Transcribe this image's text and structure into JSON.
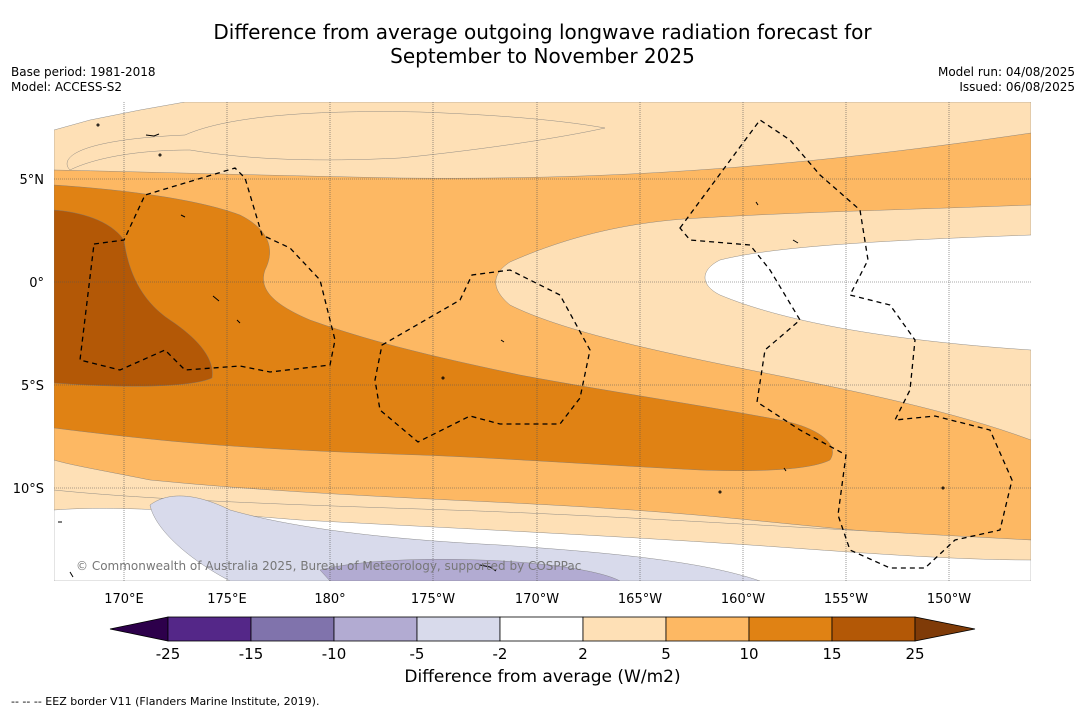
{
  "title_line1": "Difference from average outgoing longwave radiation forecast for",
  "title_line2": "September to November 2025",
  "base_period": "Base period: 1981-2018",
  "model": "Model: ACCESS-S2",
  "model_run": "Model run: 04/08/2025",
  "issued": "Issued: 06/08/2025",
  "copyright": "© Commonwealth of Australia 2025, Bureau of Meteorology, supported by COSPPac",
  "footnote": "--  --  -- EEZ border V11 (Flanders Marine Institute, 2019).",
  "colorbar_label": "Difference from average (W/m2)",
  "lon_labels": [
    "170°E",
    "175°E",
    "180°",
    "175°W",
    "170°W",
    "165°W",
    "160°W",
    "155°W",
    "150°W"
  ],
  "lat_labels": [
    "5°N",
    "0°",
    "5°S",
    "10°S"
  ],
  "colorbar": {
    "ticks": [
      "-25",
      "-15",
      "-10",
      "-5",
      "-2",
      "2",
      "5",
      "10",
      "15",
      "25"
    ],
    "colors": [
      "#2d004b",
      "#542788",
      "#8073ac",
      "#b2abd2",
      "#d8daeb",
      "#ffffff",
      "#fee0b6",
      "#fdb863",
      "#e08214",
      "#b35806",
      "#7f3b08"
    ]
  }
}
